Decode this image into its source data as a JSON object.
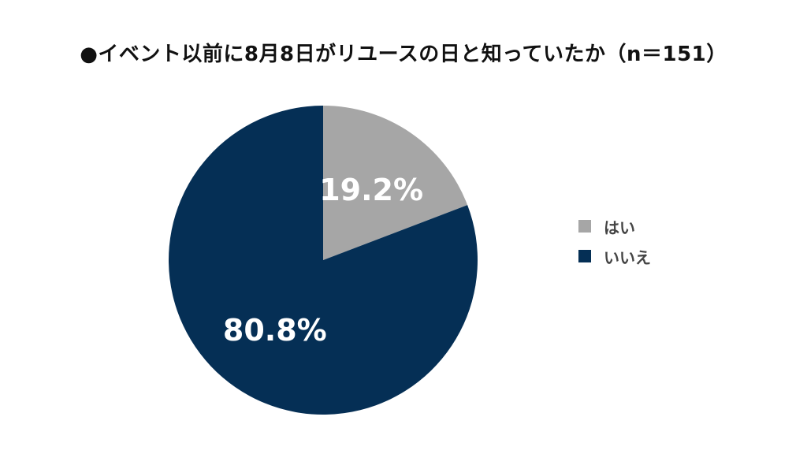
{
  "chart_data": {
    "type": "pie",
    "title": "●イベント以前に8月8日がリユースの日と知っていたか（n＝151）",
    "categories": [
      "はい",
      "いいえ"
    ],
    "values": [
      19.2,
      80.8
    ],
    "value_labels": [
      "19.2%",
      "80.8%"
    ],
    "colors": [
      "#a6a6a6",
      "#052f55"
    ],
    "start_angle": "12 o'clock",
    "direction": "clockwise",
    "legend_position": "right"
  }
}
